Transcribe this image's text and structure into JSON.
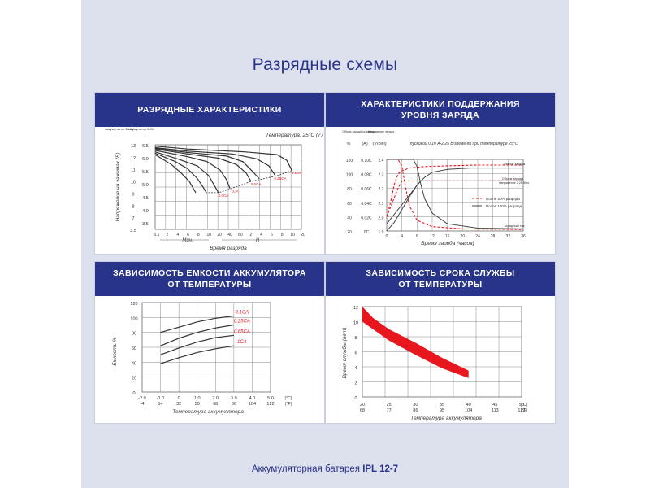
{
  "page": {
    "title": "Разрядные схемы",
    "footer_prefix": "Аккумуляторная батарея",
    "footer_model": "IPL 12-7"
  },
  "chart_data": [
    {
      "id": "discharge",
      "type": "line",
      "title": "РАЗРЯДНЫЕ ХАРАКТЕРИСТИКИ",
      "annotation": "Температура: 25°C (77°F)",
      "xlabel": "Время разряда",
      "ylabel": "Напряжение на зажимах (В)",
      "y_header_left": "Аккумулятор 12.6V",
      "y_header_right": "Аккумулятор 6.0V",
      "y_ticks_12v": [
        "13",
        "12",
        "11",
        "10",
        "9",
        "8",
        "7",
        "3.5"
      ],
      "y_ticks_6v": [
        "6.5",
        "6.0",
        "5.5",
        "5.0",
        "4.5",
        "4.0",
        "3.5"
      ],
      "x_ticks": [
        "0.1",
        "2",
        "4",
        "6",
        "8",
        "10",
        "20",
        "40",
        "60",
        "2",
        "4",
        "6",
        "8",
        "10",
        "20"
      ],
      "x_units": [
        "Мин.",
        "H"
      ],
      "ylim_v12": [
        7,
        13
      ],
      "series": [
        {
          "name": "0.1CA",
          "points": [
            [
              0,
              12.9
            ],
            [
              40,
              12.7
            ],
            [
              110,
              12.5
            ],
            [
              150,
              12.3
            ],
            [
              162,
              11.9
            ],
            [
              168,
              11.2
            ]
          ]
        },
        {
          "name": "0.25CA",
          "points": [
            [
              0,
              12.8
            ],
            [
              40,
              12.55
            ],
            [
              95,
              12.35
            ],
            [
              125,
              12.0
            ],
            [
              140,
              11.5
            ],
            [
              148,
              10.8
            ]
          ]
        },
        {
          "name": "0.6CA",
          "points": [
            [
              0,
              12.7
            ],
            [
              40,
              12.35
            ],
            [
              78,
              12.05
            ],
            [
              100,
              11.6
            ],
            [
              112,
              11.0
            ],
            [
              118,
              10.4
            ]
          ]
        },
        {
          "name": "1CA",
          "points": [
            [
              0,
              12.6
            ],
            [
              40,
              12.15
            ],
            [
              64,
              11.8
            ],
            [
              80,
              11.2
            ],
            [
              88,
              10.5
            ],
            [
              92,
              9.9
            ]
          ]
        },
        {
          "name": "2.0CA",
          "points": [
            [
              0,
              12.5
            ],
            [
              30,
              11.95
            ],
            [
              52,
              11.5
            ],
            [
              66,
              10.8
            ],
            [
              74,
              10.0
            ],
            [
              78,
              9.6
            ]
          ]
        }
      ],
      "extra_curves": [
        {
          "points": [
            [
              0,
              12.75
            ],
            [
              40,
              12.45
            ],
            [
              88,
              12.2
            ],
            [
              108,
              11.8
            ],
            [
              120,
              11.1
            ],
            [
              128,
              10.6
            ]
          ]
        },
        {
          "points": [
            [
              0,
              12.4
            ],
            [
              25,
              11.8
            ],
            [
              40,
              11.3
            ],
            [
              52,
              10.6
            ],
            [
              60,
              9.9
            ],
            [
              63,
              9.6
            ]
          ]
        },
        {
          "points": [
            [
              0,
              12.3
            ],
            [
              20,
              11.6
            ],
            [
              32,
              11.0
            ],
            [
              42,
              10.4
            ],
            [
              48,
              9.8
            ],
            [
              50,
              9.6
            ]
          ]
        }
      ],
      "cutoff_line": [
        [
          62,
          9.6
        ],
        [
          78,
          9.6
        ],
        [
          94,
          9.9
        ],
        [
          118,
          10.4
        ],
        [
          150,
          10.8
        ],
        [
          170,
          11.2
        ]
      ]
    },
    {
      "id": "float",
      "type": "line",
      "title_line1": "ХАРАКТЕРИСТИКИ ПОДДЕРЖАНИЯ",
      "title_line2": "УРОВНЯ ЗАРЯДА",
      "annotation": "пусковой 0,10 A-2,25 В/элемент при температуре 25°C",
      "xlabel": "Время заряда (часов)",
      "col_headers": [
        "Объем заряда",
        "Ток заряда",
        "Напряжение заряда"
      ],
      "col_units": [
        "%",
        "(A)",
        "(V/cell)"
      ],
      "percent_ticks": [
        "120",
        "100",
        "80",
        "60",
        "40",
        "20"
      ],
      "current_ticks": [
        "0.10C",
        "0.08C",
        "0.06C",
        "0.04C",
        "0.02C",
        "0C"
      ],
      "voltage_ticks": [
        "2.4",
        "2.3",
        "2.2",
        "2.1",
        "2.0",
        "1.9"
      ],
      "x_ticks": [
        "0",
        "4",
        "8",
        "12",
        "16",
        "20",
        "24",
        "28",
        "32",
        "36"
      ],
      "xlim": [
        0,
        36
      ],
      "legend": [
        "После 50% разряда",
        "После 100% разряда"
      ],
      "labels": [
        "Объем заряда",
        "Объем заряда",
        "Напряжение 2,25 В/эл.",
        "зарядный ток"
      ],
      "series": [
        {
          "name": "После 50% разряда",
          "kind": "charge",
          "points": [
            [
              0,
              40
            ],
            [
              1,
              60
            ],
            [
              2,
              85
            ],
            [
              3,
              100
            ],
            [
              4,
              104
            ],
            [
              6,
              108
            ],
            [
              10,
              110
            ],
            [
              16,
              111
            ],
            [
              24,
              112
            ],
            [
              36,
              112
            ]
          ]
        },
        {
          "name": "После 100% разряда",
          "kind": "charge",
          "points": [
            [
              0,
              20
            ],
            [
              2,
              32
            ],
            [
              4,
              50
            ],
            [
              6,
              68
            ],
            [
              8,
              84
            ],
            [
              10,
              95
            ],
            [
              12,
              102
            ],
            [
              16,
              106
            ],
            [
              22,
              108
            ],
            [
              36,
              108
            ]
          ]
        },
        {
          "name": "После 50% разряда",
          "kind": "current",
          "points": [
            [
              0,
              0.1
            ],
            [
              3,
              0.1
            ],
            [
              4,
              0.09
            ],
            [
              5,
              0.06
            ],
            [
              6,
              0.035
            ],
            [
              8,
              0.015
            ],
            [
              12,
              0.006
            ],
            [
              20,
              0.003
            ],
            [
              36,
              0.002
            ]
          ]
        },
        {
          "name": "После 100% разряда",
          "kind": "current",
          "points": [
            [
              0,
              0.1
            ],
            [
              7,
              0.1
            ],
            [
              8,
              0.09
            ],
            [
              9,
              0.065
            ],
            [
              10,
              0.045
            ],
            [
              12,
              0.025
            ],
            [
              16,
              0.01
            ],
            [
              24,
              0.004
            ],
            [
              36,
              0.003
            ]
          ]
        },
        {
          "name": "После 50% разряда",
          "kind": "voltage",
          "points": [
            [
              0,
              2.0
            ],
            [
              1.5,
              2.1
            ],
            [
              3,
              2.2
            ],
            [
              4,
              2.25
            ],
            [
              36,
              2.25
            ]
          ]
        },
        {
          "name": "После 100% разряда",
          "kind": "voltage",
          "points": [
            [
              0,
              1.95
            ],
            [
              3,
              2.05
            ],
            [
              6,
              2.15
            ],
            [
              8,
              2.22
            ],
            [
              9,
              2.25
            ],
            [
              36,
              2.25
            ]
          ]
        }
      ]
    },
    {
      "id": "capacity",
      "type": "line",
      "title_line1": "ЗАВИСИМОСТЬ ЕМКОСТИ АККУМУЛЯТОРА",
      "title_line2": "ОТ ТЕМПЕРАТУРЫ",
      "xlabel": "Температура аккумулятора",
      "ylabel": "Емкость %",
      "y_ticks": [
        "120",
        "100",
        "80",
        "60",
        "40",
        "20",
        "0"
      ],
      "ylim": [
        0,
        120
      ],
      "x_ticks_c": [
        "-2 0",
        "-1 0",
        "0",
        "1 0",
        "2 0",
        "3 0",
        "4 0",
        "5 0"
      ],
      "x_ticks_f": [
        "-4",
        "14",
        "32",
        "50",
        "68",
        "86",
        "104",
        "122"
      ],
      "x_unit_c": "(°C)",
      "x_unit_f": "(°F)",
      "xlim": [
        -20,
        50
      ],
      "series": [
        {
          "name": "0.1CA",
          "points": [
            [
              -10,
              80
            ],
            [
              0,
              87
            ],
            [
              10,
              94
            ],
            [
              20,
              99
            ],
            [
              30,
              102
            ]
          ]
        },
        {
          "name": "0.25CA",
          "points": [
            [
              -10,
              62
            ],
            [
              0,
              72
            ],
            [
              10,
              80
            ],
            [
              20,
              86
            ],
            [
              30,
              90
            ]
          ]
        },
        {
          "name": "0.65CA",
          "points": [
            [
              -10,
              50
            ],
            [
              0,
              59
            ],
            [
              10,
              67
            ],
            [
              20,
              73
            ],
            [
              30,
              76
            ]
          ]
        },
        {
          "name": "1CA",
          "points": [
            [
              -10,
              38
            ],
            [
              0,
              46
            ],
            [
              10,
              53
            ],
            [
              20,
              58
            ],
            [
              30,
              62
            ]
          ]
        }
      ]
    },
    {
      "id": "lifetime",
      "type": "area",
      "title_line1": "ЗАВИСИМОСТЬ СРОКА СЛУЖБЫ",
      "title_line2": "ОТ ТЕМПЕРАТУРЫ",
      "xlabel": "Температура аккумулятора",
      "ylabel": "Время службы (лет)",
      "y_ticks": [
        "12",
        "10",
        "8",
        "6",
        "4",
        "2",
        "0"
      ],
      "ylim": [
        0,
        12
      ],
      "x_ticks_c": [
        "20",
        "25",
        "30",
        "35",
        "40",
        "45",
        "50"
      ],
      "x_ticks_f": [
        "68",
        "77",
        "86",
        "95",
        "104",
        "113",
        "122"
      ],
      "x_unit_c": "(°C)",
      "x_unit_f": "(°F)",
      "xlim": [
        20,
        50
      ],
      "band_upper": [
        [
          20,
          12
        ],
        [
          22,
          10.5
        ],
        [
          25,
          9
        ],
        [
          30,
          7.2
        ],
        [
          35,
          5.2
        ],
        [
          40,
          3.5
        ]
      ],
      "band_lower": [
        [
          20,
          10
        ],
        [
          22,
          9
        ],
        [
          25,
          7.5
        ],
        [
          30,
          5.6
        ],
        [
          35,
          3.8
        ],
        [
          40,
          2.5
        ]
      ],
      "colors": {
        "band": "#e8161d"
      }
    }
  ]
}
